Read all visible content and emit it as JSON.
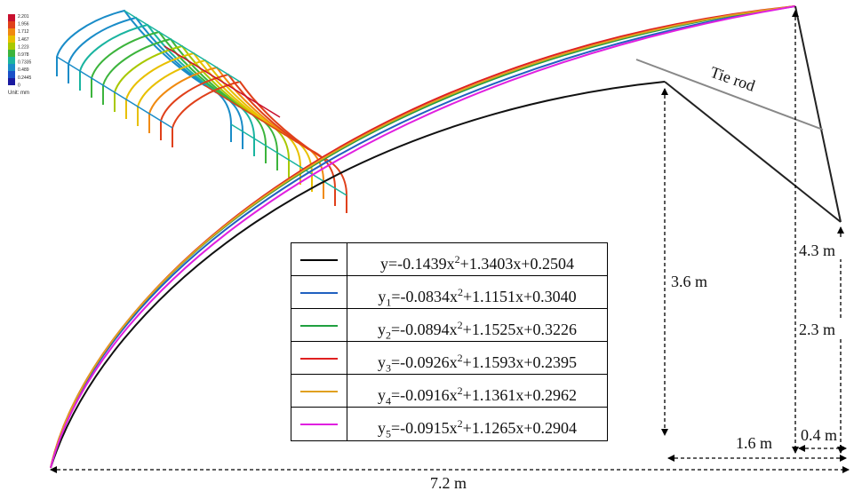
{
  "colorbar": {
    "ticks": [
      "2.201",
      "1.956",
      "1.712",
      "1.467",
      "1.223",
      "0.978",
      "0.7335",
      "0.489",
      "0.2445",
      "0"
    ],
    "colors": [
      "#c8102e",
      "#e0401a",
      "#f08a10",
      "#e8c000",
      "#a8c800",
      "#3cb43c",
      "#1ab4a0",
      "#1a8cc8",
      "#1a50c8",
      "#1a1aa0"
    ],
    "unit_label": "Unit: mm"
  },
  "annotations": {
    "tie_rod": "Tie rod",
    "dim_3_6": "3.6 m",
    "dim_4_3": "4.3 m",
    "dim_2_3": "2.3 m",
    "dim_1_6": "1.6 m",
    "dim_0_4": "0.4 m",
    "dim_7_2": "7.2 m"
  },
  "legend": [
    {
      "color": "#000000",
      "sym": "y",
      "sub": "",
      "c2": "-0.1439",
      "c1": "1.3403",
      "c0": "0.2504"
    },
    {
      "color": "#2060c0",
      "sym": "y",
      "sub": "1",
      "c2": "-0.0834",
      "c1": "1.1151",
      "c0": "0.3040"
    },
    {
      "color": "#20a040",
      "sym": "y",
      "sub": "2",
      "c2": "-0.0894",
      "c1": "1.1525",
      "c0": "0.3226"
    },
    {
      "color": "#e02020",
      "sym": "y",
      "sub": "3",
      "c2": "-0.0926",
      "c1": "1.1593",
      "c0": "0.2395"
    },
    {
      "color": "#e0a020",
      "sym": "y",
      "sub": "4",
      "c2": "-0.0916",
      "c1": "1.1361",
      "c0": "0.2962"
    },
    {
      "color": "#e020e0",
      "sym": "y",
      "sub": "5",
      "c2": "-0.0915",
      "c1": "1.1265",
      "c0": "0.2904"
    }
  ]
}
